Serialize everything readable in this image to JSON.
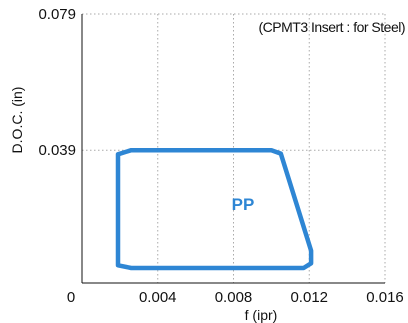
{
  "chart_data": {
    "type": "area",
    "title": "",
    "annotation": "(CPMT3 Insert : for Steel)",
    "xlabel": "f (ipr)",
    "ylabel": "D.O.C. (in)",
    "xlim": [
      0,
      0.016
    ],
    "ylim": [
      0,
      0.079
    ],
    "x_ticks": [
      "0",
      "0.004",
      "0.008",
      "0.012",
      "0.016"
    ],
    "x_tick_values": [
      0,
      0.004,
      0.008,
      0.012,
      0.016
    ],
    "y_ticks": [
      "0.039",
      "0.079"
    ],
    "y_tick_values": [
      0.039,
      0.079
    ],
    "grid": true,
    "region": {
      "label": "PP",
      "color": "#2e86d4",
      "outline": [
        [
          0.0019,
          0.0052
        ],
        [
          0.0019,
          0.0378
        ],
        [
          0.0026,
          0.039
        ],
        [
          0.01,
          0.039
        ],
        [
          0.0105,
          0.038
        ],
        [
          0.0121,
          0.0095
        ],
        [
          0.0121,
          0.0058
        ],
        [
          0.0117,
          0.0044
        ],
        [
          0.0026,
          0.0044
        ]
      ],
      "label_position": [
        0.0085,
        0.0215
      ]
    },
    "axis_color": "#111111",
    "grid_color": "#aaaaaa"
  }
}
